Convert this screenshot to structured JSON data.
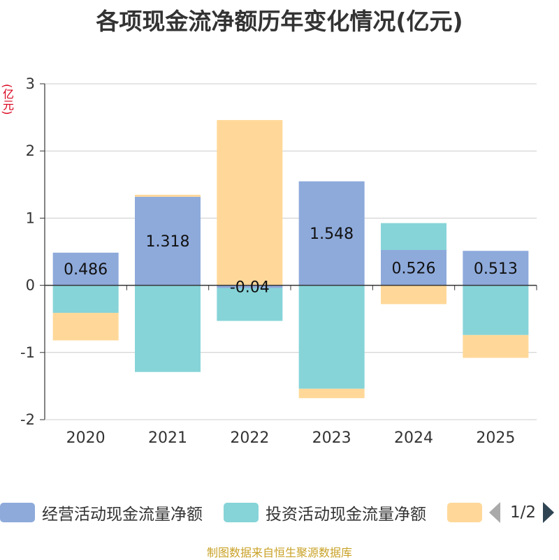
{
  "title": "各项现金流净额历年变化情况(亿元)",
  "unit_label": "(亿元)",
  "source": "制图数据来自恒生聚源数据库",
  "legend": {
    "items": [
      {
        "name": "经营活动现金流量净额",
        "color": "#8eaadb"
      },
      {
        "name": "投资活动现金流量净额",
        "color": "#86d4d8"
      },
      {
        "name": "",
        "color": "#ffd899"
      }
    ],
    "page": "1/2"
  },
  "chart_data": {
    "type": "bar",
    "stacked": true,
    "categories": [
      "2020",
      "2021",
      "2022",
      "2023",
      "2024",
      "2025"
    ],
    "ylim": [
      -2,
      3
    ],
    "yticks": [
      -2,
      -1,
      0,
      1,
      2,
      3
    ],
    "grid": true,
    "series": [
      {
        "name": "经营活动现金流量净额",
        "color": "#8eaadb",
        "values": [
          0.486,
          1.318,
          -0.04,
          1.548,
          0.526,
          0.513
        ],
        "labels": [
          "0.486",
          "1.318",
          "-0.04",
          "1.548",
          "0.526",
          "0.513"
        ]
      },
      {
        "name": "投资活动现金流量净额",
        "color": "#86d4d8",
        "values": [
          -0.41,
          -1.29,
          -0.49,
          -1.54,
          0.4,
          -0.74
        ]
      },
      {
        "name": "",
        "color": "#ffd899",
        "values": [
          -0.41,
          0.03,
          2.46,
          -0.14,
          -0.28,
          -0.34
        ]
      }
    ]
  }
}
